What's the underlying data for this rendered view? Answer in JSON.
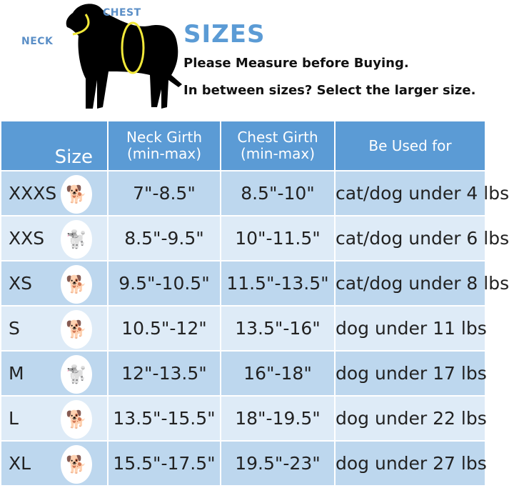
{
  "diagram": {
    "neck_label": "NECK",
    "chest_label": "CHEST"
  },
  "header": {
    "title": "SIZES",
    "line1": "Please Measure before Buying.",
    "line2": "In between sizes? Select the larger size."
  },
  "colors": {
    "header_bg": "#5b9bd5",
    "row_dark": "#bdd7ee",
    "row_light": "#deebf7",
    "title": "#5b9bd5",
    "ring": "#f2e93a"
  },
  "table": {
    "columns": [
      "Size",
      "Neck Girth\n(min-max)",
      "Chest Girth\n(min-max)",
      "Be Used for"
    ],
    "col_neck_1": "Neck Girth",
    "col_neck_2": "(min-max)",
    "col_chest_1": "Chest Girth",
    "col_chest_2": "(min-max)",
    "rows": [
      {
        "size": "XXXS",
        "neck": "7\"-8.5\"",
        "chest": "8.5\"-10\"",
        "used": "cat/dog under 4 lbs",
        "pet": "yorkshire-terrier-photo"
      },
      {
        "size": "XXS",
        "neck": "8.5\"-9.5\"",
        "chest": "10\"-11.5\"",
        "used": "cat/dog under 6 lbs",
        "pet": "pomeranian-photo"
      },
      {
        "size": "XS",
        "neck": "9.5\"-10.5\"",
        "chest": "11.5\"-13.5\"",
        "used": "cat/dog under 8 lbs",
        "pet": "chihuahua-photo"
      },
      {
        "size": "S",
        "neck": "10.5\"-12\"",
        "chest": "13.5\"-16\"",
        "used": "dog under 11 lbs",
        "pet": "terrier-photo"
      },
      {
        "size": "M",
        "neck": "12\"-13.5\"",
        "chest": "16\"-18\"",
        "used": "dog under 17 lbs",
        "pet": "poodle-photo"
      },
      {
        "size": "L",
        "neck": "13.5\"-15.5\"",
        "chest": "18\"-19.5\"",
        "used": "dog under 22 lbs",
        "pet": "corgi-photo"
      },
      {
        "size": "XL",
        "neck": "15.5\"-17.5\"",
        "chest": "19.5\"-23\"",
        "used": "dog under 27 lbs",
        "pet": "shiba-inu-photo"
      }
    ]
  }
}
